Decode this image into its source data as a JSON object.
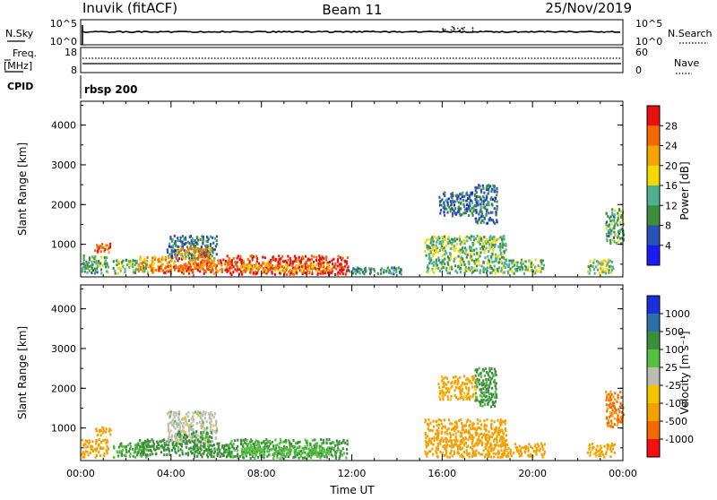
{
  "header": {
    "station": "Inuvik (fitACF)",
    "beam": "Beam 11",
    "date": "25/Nov/2019"
  },
  "top_panels": {
    "nsky_label": "N.Sky",
    "nsky_ticks": [
      "10^5",
      "10^0"
    ],
    "nsearch_label": "N.Search",
    "nsearch_ticks": [
      "10^5",
      "10^0"
    ],
    "freq_label_1": "Freq.",
    "freq_label_2": "[MHz]",
    "freq_ticks": [
      "18",
      "8"
    ],
    "nave_label": "Nave",
    "nave_ticks": [
      "60",
      "0"
    ],
    "cpid_label": "CPID",
    "cpid_value": "rbsp 200"
  },
  "colors": {
    "power_scale": [
      "#1b1bf5",
      "#2a52b4",
      "#3b8f3a",
      "#4fb08f",
      "#f5d800",
      "#f5a400",
      "#f56a00",
      "#e81010"
    ],
    "velocity_scale": [
      "#f51010",
      "#f56a00",
      "#f5a000",
      "#f5c400",
      "#bcbcb0",
      "#55c040",
      "#3b8f3a",
      "#2a6fa8",
      "#1b30d8"
    ]
  },
  "chart_data": [
    {
      "type": "heatmap",
      "title": "",
      "xlabel": "",
      "ylabel": "Slant Range [km]",
      "xlim": [
        "00:00",
        "00:00"
      ],
      "ylim": [
        180,
        4600
      ],
      "y_ticks": [
        "1000",
        "2000",
        "3000",
        "4000"
      ],
      "colorbar_label": "Power [dB]",
      "colorbar_ticks": [
        "4",
        "8",
        "12",
        "16",
        "20",
        "24",
        "28"
      ],
      "colorbar_range": [
        0,
        32
      ],
      "patches": [
        {
          "t": [
            0.0,
            1.2
          ],
          "r": [
            250,
            700
          ],
          "level": 12
        },
        {
          "t": [
            0.6,
            1.3
          ],
          "r": [
            780,
            1000
          ],
          "level": 28
        },
        {
          "t": [
            1.4,
            3.0
          ],
          "r": [
            250,
            600
          ],
          "level": 14
        },
        {
          "t": [
            2.5,
            4.2
          ],
          "r": [
            300,
            700
          ],
          "level": 22
        },
        {
          "t": [
            3.0,
            5.0
          ],
          "r": [
            250,
            450
          ],
          "level": 28
        },
        {
          "t": [
            3.8,
            6.0
          ],
          "r": [
            600,
            1200
          ],
          "level": 8
        },
        {
          "t": [
            4.2,
            5.8
          ],
          "r": [
            300,
            900
          ],
          "level": 24
        },
        {
          "t": [
            5.0,
            6.6
          ],
          "r": [
            250,
            600
          ],
          "level": 26
        },
        {
          "t": [
            6.4,
            11.8
          ],
          "r": [
            220,
            700
          ],
          "level": 30
        },
        {
          "t": [
            7.0,
            11.0
          ],
          "r": [
            300,
            500
          ],
          "level": 22
        },
        {
          "t": [
            11.8,
            14.2
          ],
          "r": [
            230,
            400
          ],
          "level": 10
        },
        {
          "t": [
            15.2,
            18.8
          ],
          "r": [
            250,
            1200
          ],
          "level": 14
        },
        {
          "t": [
            15.8,
            17.5
          ],
          "r": [
            1700,
            2300
          ],
          "level": 8
        },
        {
          "t": [
            17.4,
            18.4
          ],
          "r": [
            1500,
            2500
          ],
          "level": 8
        },
        {
          "t": [
            18.6,
            20.5
          ],
          "r": [
            250,
            600
          ],
          "level": 14
        },
        {
          "t": [
            22.4,
            23.6
          ],
          "r": [
            250,
            600
          ],
          "level": 16
        },
        {
          "t": [
            23.2,
            24.0
          ],
          "r": [
            1000,
            1900
          ],
          "level": 12
        }
      ]
    },
    {
      "type": "heatmap",
      "title": "",
      "xlabel": "Time UT",
      "ylabel": "Slant Range [km]",
      "xlim": [
        "00:00",
        "00:00"
      ],
      "ylim": [
        180,
        4600
      ],
      "x_ticks": [
        "00:00",
        "04:00",
        "08:00",
        "12:00",
        "16:00",
        "20:00",
        "00:00"
      ],
      "y_ticks": [
        "1000",
        "2000",
        "3000",
        "4000"
      ],
      "colorbar_label": "Velocity [m s⁻¹]",
      "colorbar_ticks": [
        "-1000",
        "-500",
        "-100",
        "-25",
        "25",
        "100",
        "500",
        "1000"
      ],
      "patches": [
        {
          "t": [
            0.0,
            1.2
          ],
          "r": [
            250,
            700
          ],
          "level": -300
        },
        {
          "t": [
            0.6,
            1.3
          ],
          "r": [
            780,
            1000
          ],
          "level": -200
        },
        {
          "t": [
            1.4,
            3.0
          ],
          "r": [
            250,
            600
          ],
          "level": 100
        },
        {
          "t": [
            2.5,
            4.2
          ],
          "r": [
            300,
            700
          ],
          "level": 200
        },
        {
          "t": [
            3.8,
            6.0
          ],
          "r": [
            600,
            1400
          ],
          "level": 0
        },
        {
          "t": [
            4.2,
            5.8
          ],
          "r": [
            300,
            900
          ],
          "level": 150
        },
        {
          "t": [
            5.0,
            6.6
          ],
          "r": [
            250,
            600
          ],
          "level": 300
        },
        {
          "t": [
            6.4,
            11.8
          ],
          "r": [
            220,
            700
          ],
          "level": 120
        },
        {
          "t": [
            7.0,
            11.0
          ],
          "r": [
            300,
            500
          ],
          "level": 60
        },
        {
          "t": [
            15.2,
            18.8
          ],
          "r": [
            250,
            1200
          ],
          "level": -200
        },
        {
          "t": [
            15.8,
            17.5
          ],
          "r": [
            1700,
            2300
          ],
          "level": -150
        },
        {
          "t": [
            17.4,
            18.4
          ],
          "r": [
            1500,
            2500
          ],
          "level": 150
        },
        {
          "t": [
            18.6,
            20.5
          ],
          "r": [
            250,
            600
          ],
          "level": -300
        },
        {
          "t": [
            22.4,
            23.6
          ],
          "r": [
            250,
            600
          ],
          "level": -150
        },
        {
          "t": [
            23.2,
            24.0
          ],
          "r": [
            1000,
            1900
          ],
          "level": -600
        }
      ]
    }
  ]
}
